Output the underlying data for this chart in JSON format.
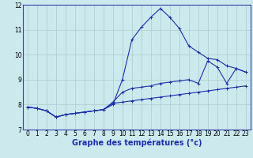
{
  "xlabel": "Graphe des températures (°c)",
  "xlim": [
    -0.5,
    23.5
  ],
  "ylim": [
    7,
    12
  ],
  "yticks": [
    7,
    8,
    9,
    10,
    11,
    12
  ],
  "xticks": [
    0,
    1,
    2,
    3,
    4,
    5,
    6,
    7,
    8,
    9,
    10,
    11,
    12,
    13,
    14,
    15,
    16,
    17,
    18,
    19,
    20,
    21,
    22,
    23
  ],
  "bg_color": "#cce9ed",
  "grid_color": "#aacccc",
  "line_color": "#1c2faa",
  "line1_y": [
    7.9,
    7.85,
    7.75,
    7.5,
    7.6,
    7.65,
    7.7,
    7.75,
    7.8,
    8.0,
    9.0,
    10.6,
    11.1,
    11.5,
    11.85,
    11.5,
    11.05,
    10.35,
    10.1,
    9.85,
    9.8,
    9.55,
    9.45,
    9.3
  ],
  "line2_y": [
    7.9,
    7.85,
    7.75,
    7.5,
    7.6,
    7.65,
    7.7,
    7.75,
    7.8,
    8.1,
    8.5,
    8.65,
    8.7,
    8.75,
    8.85,
    8.9,
    8.95,
    9.0,
    8.85,
    9.75,
    9.5,
    8.85,
    9.45,
    9.3
  ],
  "line3_y": [
    7.9,
    7.85,
    7.75,
    7.5,
    7.6,
    7.65,
    7.7,
    7.75,
    7.8,
    8.05,
    8.1,
    8.15,
    8.2,
    8.25,
    8.3,
    8.35,
    8.4,
    8.45,
    8.5,
    8.55,
    8.6,
    8.65,
    8.7,
    8.75
  ],
  "marker": "+",
  "markersize": 3,
  "linewidth": 0.8,
  "tick_fontsize": 5.5,
  "xlabel_fontsize": 7
}
